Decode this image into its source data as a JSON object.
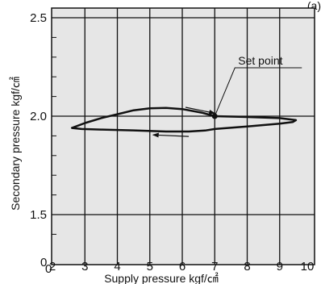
{
  "chart_data": {
    "type": "line",
    "title": "",
    "xlabel": "Supply pressure kgf/㎠",
    "ylabel": "Secondary pressure kgf/㎠",
    "xlim": [
      2,
      10
    ],
    "ylim": [
      1.4,
      2.55
    ],
    "x_ticks": [
      "2",
      "3",
      "4",
      "5",
      "6",
      "7",
      "8",
      "9",
      "10"
    ],
    "y_ticks": [
      "1.5",
      "2.0",
      "2.5"
    ],
    "origin_labels": [
      "0",
      "0"
    ],
    "grid": true,
    "series": [
      {
        "x": [
          7.0,
          6.6,
          6.0,
          5.5,
          5.0,
          4.5,
          4.0,
          3.5,
          3.0,
          2.6,
          2.9,
          3.5,
          4.5,
          5.5,
          6.2,
          6.7,
          7.0,
          8.0,
          9.0,
          9.4,
          9.5,
          9.0,
          8.0,
          7.0
        ],
        "y": [
          2.0,
          2.018,
          2.036,
          2.042,
          2.04,
          2.03,
          2.01,
          1.99,
          1.965,
          1.94,
          1.935,
          1.932,
          1.928,
          1.922,
          1.922,
          1.927,
          1.935,
          1.948,
          1.962,
          1.97,
          1.98,
          1.99,
          1.996,
          2.0
        ]
      }
    ],
    "arrows": [
      {
        "from": [
          6.1,
          2.045
        ],
        "to": [
          7.0,
          2.015
        ]
      },
      {
        "from": [
          6.2,
          1.897
        ],
        "to": [
          5.1,
          1.905
        ]
      }
    ],
    "annotation": {
      "text": "Set point",
      "point": [
        7.0,
        2.0
      ]
    }
  },
  "header": {
    "fragment": "(a)"
  }
}
